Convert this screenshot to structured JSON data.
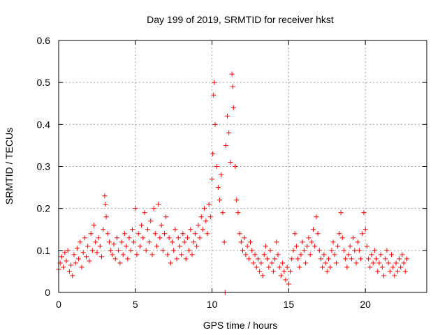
{
  "chart_data": {
    "type": "scatter",
    "title": "Day 199 of 2019, SRMTID for receiver hkst",
    "xlabel": "GPS time / hours",
    "ylabel": "SRMTID / TECUs",
    "xlim": [
      0,
      24
    ],
    "ylim": [
      0,
      0.6
    ],
    "xticks": [
      0,
      5,
      10,
      15,
      20
    ],
    "xtick_labels": [
      "0",
      "5",
      "10",
      "15",
      "20"
    ],
    "yticks": [
      0,
      0.1,
      0.2,
      0.3,
      0.4,
      0.5,
      0.6
    ],
    "ytick_labels": [
      "0",
      "0.1",
      "0.2",
      "0.3",
      "0.4",
      "0.5",
      "0.6"
    ],
    "grid": true,
    "marker": "plus",
    "color": "#ff0000",
    "series": [
      {
        "name": "SRMTID",
        "points": [
          [
            0.0,
            0.055
          ],
          [
            0.1,
            0.07
          ],
          [
            0.2,
            0.085
          ],
          [
            0.3,
            0.06
          ],
          [
            0.4,
            0.095
          ],
          [
            0.5,
            0.075
          ],
          [
            0.6,
            0.1
          ],
          [
            0.7,
            0.05
          ],
          [
            0.8,
            0.065
          ],
          [
            0.9,
            0.04
          ],
          [
            1.0,
            0.09
          ],
          [
            1.1,
            0.07
          ],
          [
            1.2,
            0.105
          ],
          [
            1.3,
            0.08
          ],
          [
            1.4,
            0.12
          ],
          [
            1.5,
            0.06
          ],
          [
            1.6,
            0.095
          ],
          [
            1.7,
            0.13
          ],
          [
            1.8,
            0.085
          ],
          [
            1.9,
            0.11
          ],
          [
            2.0,
            0.075
          ],
          [
            2.1,
            0.14
          ],
          [
            2.2,
            0.1
          ],
          [
            2.3,
            0.16
          ],
          [
            2.4,
            0.12
          ],
          [
            2.5,
            0.095
          ],
          [
            2.6,
            0.13
          ],
          [
            2.7,
            0.11
          ],
          [
            2.8,
            0.085
          ],
          [
            2.9,
            0.15
          ],
          [
            3.0,
            0.23
          ],
          [
            3.05,
            0.21
          ],
          [
            3.1,
            0.18
          ],
          [
            3.2,
            0.14
          ],
          [
            3.3,
            0.12
          ],
          [
            3.4,
            0.1
          ],
          [
            3.5,
            0.09
          ],
          [
            3.6,
            0.115
          ],
          [
            3.7,
            0.08
          ],
          [
            3.8,
            0.13
          ],
          [
            3.9,
            0.1
          ],
          [
            4.0,
            0.07
          ],
          [
            4.1,
            0.12
          ],
          [
            4.2,
            0.09
          ],
          [
            4.3,
            0.14
          ],
          [
            4.4,
            0.11
          ],
          [
            4.5,
            0.08
          ],
          [
            4.6,
            0.13
          ],
          [
            4.7,
            0.1
          ],
          [
            4.8,
            0.15
          ],
          [
            4.9,
            0.12
          ],
          [
            5.0,
            0.2
          ],
          [
            5.1,
            0.09
          ],
          [
            5.2,
            0.14
          ],
          [
            5.3,
            0.11
          ],
          [
            5.4,
            0.16
          ],
          [
            5.5,
            0.13
          ],
          [
            5.6,
            0.19
          ],
          [
            5.7,
            0.1
          ],
          [
            5.8,
            0.15
          ],
          [
            5.9,
            0.12
          ],
          [
            6.0,
            0.17
          ],
          [
            6.1,
            0.09
          ],
          [
            6.2,
            0.2
          ],
          [
            6.3,
            0.14
          ],
          [
            6.4,
            0.11
          ],
          [
            6.5,
            0.21
          ],
          [
            6.6,
            0.13
          ],
          [
            6.7,
            0.16
          ],
          [
            6.8,
            0.1
          ],
          [
            6.9,
            0.14
          ],
          [
            7.0,
            0.18
          ],
          [
            7.1,
            0.09
          ],
          [
            7.2,
            0.13
          ],
          [
            7.3,
            0.07
          ],
          [
            7.4,
            0.12
          ],
          [
            7.5,
            0.1
          ],
          [
            7.6,
            0.15
          ],
          [
            7.7,
            0.08
          ],
          [
            7.8,
            0.13
          ],
          [
            7.9,
            0.11
          ],
          [
            8.0,
            0.09
          ],
          [
            8.1,
            0.14
          ],
          [
            8.2,
            0.12
          ],
          [
            8.3,
            0.08
          ],
          [
            8.4,
            0.13
          ],
          [
            8.5,
            0.1
          ],
          [
            8.6,
            0.15
          ],
          [
            8.7,
            0.09
          ],
          [
            8.8,
            0.12
          ],
          [
            8.9,
            0.14
          ],
          [
            9.0,
            0.11
          ],
          [
            9.1,
            0.16
          ],
          [
            9.2,
            0.13
          ],
          [
            9.3,
            0.18
          ],
          [
            9.4,
            0.15
          ],
          [
            9.5,
            0.2
          ],
          [
            9.6,
            0.17
          ],
          [
            9.7,
            0.14
          ],
          [
            9.8,
            0.21
          ],
          [
            9.9,
            0.18
          ],
          [
            10.0,
            0.27
          ],
          [
            10.05,
            0.33
          ],
          [
            10.1,
            0.47
          ],
          [
            10.15,
            0.5
          ],
          [
            10.2,
            0.4
          ],
          [
            10.3,
            0.3
          ],
          [
            10.4,
            0.25
          ],
          [
            10.5,
            0.22
          ],
          [
            10.6,
            0.28
          ],
          [
            10.7,
            0.19
          ],
          [
            10.8,
            0.12
          ],
          [
            10.9,
            0.35
          ],
          [
            11.0,
            0.42
          ],
          [
            11.1,
            0.38
          ],
          [
            11.2,
            0.31
          ],
          [
            11.3,
            0.52
          ],
          [
            11.35,
            0.49
          ],
          [
            11.4,
            0.44
          ],
          [
            11.5,
            0.3
          ],
          [
            11.6,
            0.22
          ],
          [
            11.7,
            0.19
          ],
          [
            11.8,
            0.14
          ],
          [
            11.9,
            0.12
          ],
          [
            12.0,
            0.1
          ],
          [
            12.1,
            0.13
          ],
          [
            12.2,
            0.09
          ],
          [
            12.3,
            0.11
          ],
          [
            12.4,
            0.08
          ],
          [
            12.5,
            0.12
          ],
          [
            12.6,
            0.1
          ],
          [
            12.7,
            0.07
          ],
          [
            12.8,
            0.09
          ],
          [
            12.9,
            0.06
          ],
          [
            13.0,
            0.08
          ],
          [
            13.1,
            0.05
          ],
          [
            13.2,
            0.07
          ],
          [
            13.3,
            0.04
          ],
          [
            13.4,
            0.09
          ],
          [
            13.5,
            0.11
          ],
          [
            13.6,
            0.08
          ],
          [
            13.7,
            0.06
          ],
          [
            13.8,
            0.1
          ],
          [
            13.9,
            0.07
          ],
          [
            14.0,
            0.05
          ],
          [
            14.1,
            0.08
          ],
          [
            14.2,
            0.12
          ],
          [
            14.3,
            0.09
          ],
          [
            14.4,
            0.06
          ],
          [
            14.5,
            0.04
          ],
          [
            14.6,
            0.07
          ],
          [
            14.7,
            0.05
          ],
          [
            14.8,
            0.03
          ],
          [
            14.9,
            0.06
          ],
          [
            15.0,
            0.02
          ],
          [
            15.1,
            0.05
          ],
          [
            15.2,
            0.08
          ],
          [
            15.3,
            0.1
          ],
          [
            15.4,
            0.14
          ],
          [
            15.5,
            0.11
          ],
          [
            15.6,
            0.08
          ],
          [
            15.7,
            0.06
          ],
          [
            15.8,
            0.09
          ],
          [
            15.9,
            0.12
          ],
          [
            16.0,
            0.1
          ],
          [
            16.1,
            0.07
          ],
          [
            16.2,
            0.11
          ],
          [
            16.3,
            0.13
          ],
          [
            16.4,
            0.09
          ],
          [
            16.5,
            0.12
          ],
          [
            16.6,
            0.15
          ],
          [
            16.7,
            0.11
          ],
          [
            16.8,
            0.18
          ],
          [
            16.9,
            0.14
          ],
          [
            17.0,
            0.1
          ],
          [
            17.1,
            0.08
          ],
          [
            17.2,
            0.06
          ],
          [
            17.3,
            0.09
          ],
          [
            17.4,
            0.07
          ],
          [
            17.5,
            0.05
          ],
          [
            17.6,
            0.08
          ],
          [
            17.7,
            0.06
          ],
          [
            17.8,
            0.1
          ],
          [
            17.9,
            0.12
          ],
          [
            18.0,
            0.09
          ],
          [
            18.1,
            0.07
          ],
          [
            18.2,
            0.11
          ],
          [
            18.3,
            0.14
          ],
          [
            18.4,
            0.19
          ],
          [
            18.5,
            0.13
          ],
          [
            18.6,
            0.1
          ],
          [
            18.7,
            0.08
          ],
          [
            18.8,
            0.06
          ],
          [
            18.9,
            0.09
          ],
          [
            19.0,
            0.11
          ],
          [
            19.1,
            0.08
          ],
          [
            19.2,
            0.13
          ],
          [
            19.3,
            0.1
          ],
          [
            19.4,
            0.07
          ],
          [
            19.5,
            0.12
          ],
          [
            19.6,
            0.1
          ],
          [
            19.7,
            0.08
          ],
          [
            19.8,
            0.14
          ],
          [
            19.9,
            0.19
          ],
          [
            20.0,
            0.15
          ],
          [
            20.1,
            0.11
          ],
          [
            20.2,
            0.08
          ],
          [
            20.3,
            0.06
          ],
          [
            20.4,
            0.09
          ],
          [
            20.5,
            0.07
          ],
          [
            20.6,
            0.1
          ],
          [
            20.7,
            0.08
          ],
          [
            20.8,
            0.05
          ],
          [
            20.9,
            0.07
          ],
          [
            21.0,
            0.09
          ],
          [
            21.1,
            0.06
          ],
          [
            21.2,
            0.04
          ],
          [
            21.3,
            0.08
          ],
          [
            21.4,
            0.1
          ],
          [
            21.5,
            0.07
          ],
          [
            21.6,
            0.05
          ],
          [
            21.7,
            0.09
          ],
          [
            21.8,
            0.06
          ],
          [
            21.9,
            0.04
          ],
          [
            22.0,
            0.07
          ],
          [
            22.1,
            0.05
          ],
          [
            22.2,
            0.08
          ],
          [
            22.3,
            0.06
          ],
          [
            22.4,
            0.09
          ],
          [
            22.5,
            0.07
          ],
          [
            22.6,
            0.05
          ],
          [
            22.7,
            0.08
          ],
          [
            10.85,
            0.0
          ]
        ]
      }
    ]
  }
}
